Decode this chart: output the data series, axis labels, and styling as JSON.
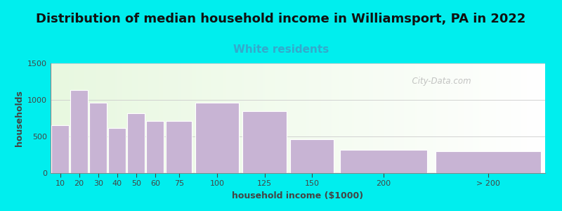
{
  "title": "Distribution of median household income in Williamsport, PA in 2022",
  "subtitle": "White residents",
  "xlabel": "household income ($1000)",
  "ylabel": "households",
  "bar_color": "#c8b4d4",
  "bar_edge_color": "#ffffff",
  "background_outer": "#00eeee",
  "ylim": [
    0,
    1500
  ],
  "yticks": [
    0,
    500,
    1000,
    1500
  ],
  "categories": [
    "10",
    "20",
    "30",
    "40",
    "50",
    "60",
    "75",
    "100",
    "125",
    "150",
    "200",
    "> 200"
  ],
  "values": [
    650,
    1130,
    960,
    620,
    820,
    710,
    710,
    960,
    850,
    460,
    320,
    295
  ],
  "left_edges": [
    0,
    10,
    20,
    30,
    40,
    50,
    60,
    75,
    100,
    125,
    150,
    200
  ],
  "widths": [
    10,
    10,
    10,
    10,
    10,
    10,
    15,
    25,
    25,
    25,
    50,
    60
  ],
  "title_fontsize": 13,
  "subtitle_fontsize": 11,
  "subtitle_color": "#33aacc",
  "axis_label_fontsize": 9,
  "tick_fontsize": 8,
  "watermark_text": "  City-Data.com",
  "watermark_color": "#aaaaaa"
}
